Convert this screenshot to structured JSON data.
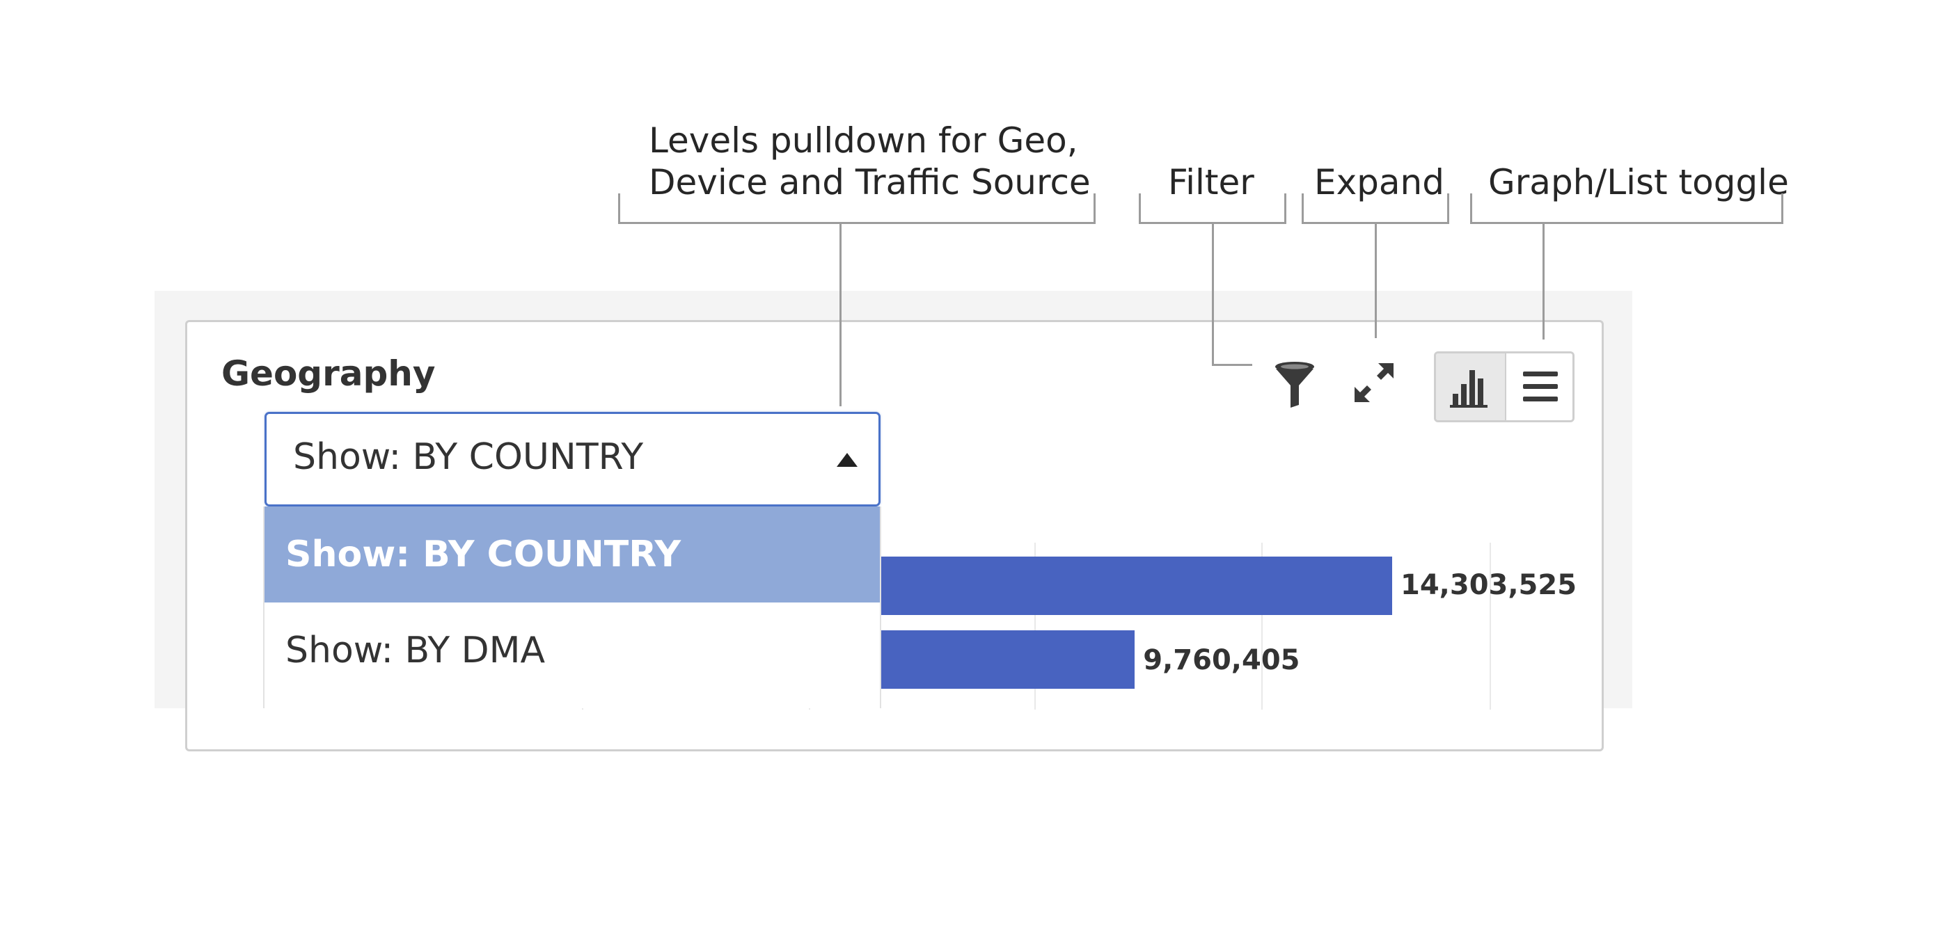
{
  "callouts": {
    "levels_line1": "Levels pulldown for Geo,",
    "levels_line2": "Device and Traffic Source",
    "filter": "Filter",
    "expand": "Expand",
    "toggle": "Graph/List toggle"
  },
  "card": {
    "title": "Geography"
  },
  "select": {
    "value": "Show: BY COUNTRY",
    "options": [
      {
        "label": "Show: BY COUNTRY",
        "selected": true
      },
      {
        "label": "Show: BY DMA",
        "selected": false
      }
    ]
  },
  "toolbar": {
    "filter_icon": "funnel-icon",
    "expand_icon": "expand-arrows-icon",
    "graph_icon": "bar-chart-icon",
    "list_icon": "list-icon"
  },
  "colors": {
    "bar": "#4863c0",
    "selected_option": "#8fa9d8",
    "select_border": "#4a72c8"
  },
  "chart_data": {
    "type": "bar",
    "orientation": "horizontal",
    "values": [
      14303525,
      9760405
    ],
    "value_labels": [
      "14,303,525",
      "9,760,405"
    ],
    "grid": true
  }
}
